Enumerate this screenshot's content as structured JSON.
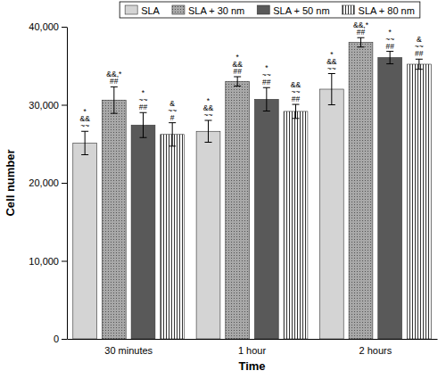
{
  "chart_data": {
    "type": "bar",
    "x_label": "Time",
    "y_label": "Cell number",
    "categories": [
      "30 minutes",
      "1 hour",
      "2 hours"
    ],
    "series": [
      {
        "name": "SLA",
        "color": "#d4d4d4",
        "values": [
          25100,
          26600,
          32000
        ],
        "errors": [
          1500,
          1400,
          2000
        ],
        "annotations": [
          [
            "*",
            "&&",
            "~~"
          ],
          [
            "*",
            "&&",
            "~~"
          ],
          [
            "*",
            "&&",
            "~~"
          ]
        ]
      },
      {
        "name": "SLA + 30 nm",
        "color": "#a8a8a8",
        "values": [
          30600,
          33000,
          38000
        ],
        "errors": [
          1700,
          600,
          600
        ],
        "annotations": [
          [
            "&&,*",
            "##"
          ],
          [
            "*",
            "&&",
            "##"
          ],
          [
            "&&,*",
            "##"
          ]
        ]
      },
      {
        "name": "SLA + 50 nm",
        "color": "#595959",
        "values": [
          27400,
          30700,
          36050
        ],
        "errors": [
          1600,
          1500,
          800
        ],
        "annotations": [
          [
            "*",
            "~~",
            "##"
          ],
          [
            "*",
            "~~",
            "##"
          ],
          [
            "*",
            "~~",
            "##"
          ]
        ]
      },
      {
        "name": "SLA + 80 nm",
        "color": "#ffffff",
        "values": [
          26200,
          29150,
          35200
        ],
        "errors": [
          1500,
          900,
          650
        ],
        "annotations": [
          [
            "&",
            "~~",
            "#"
          ],
          [
            "&&",
            "~~",
            "##"
          ],
          [
            "&",
            "~~",
            "##"
          ]
        ]
      }
    ],
    "ylim": [
      0,
      40000
    ],
    "yticks": [
      0,
      {
        "value": 10000,
        "label": "10,000"
      },
      {
        "value": 20000,
        "label": "20,000"
      },
      {
        "value": 30000,
        "label": "30,000"
      },
      {
        "value": 40000,
        "label": "40,000"
      }
    ],
    "legend": "top",
    "grid": false
  }
}
